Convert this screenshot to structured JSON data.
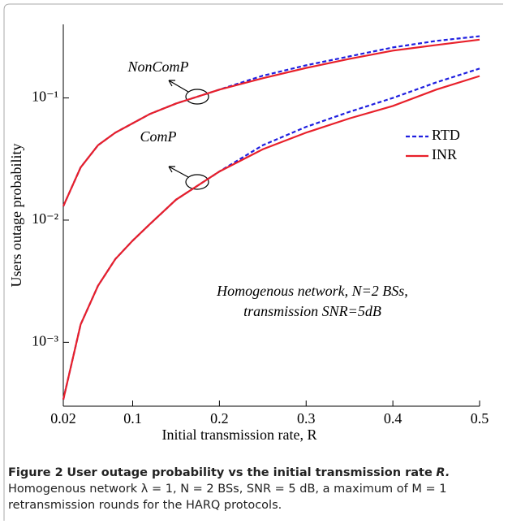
{
  "chart_data": {
    "type": "line",
    "x_label": "Initial transmission rate, R",
    "y_label": "Users outage probability",
    "x": [
      0.02,
      0.04,
      0.06,
      0.08,
      0.1,
      0.12,
      0.15,
      0.2,
      0.25,
      0.3,
      0.35,
      0.4,
      0.45,
      0.5
    ],
    "series": [
      {
        "name": "RTD",
        "color": "#1f1fe0",
        "dashed": true,
        "curves": [
          [
            0.013,
            0.027,
            0.041,
            0.052,
            0.062,
            0.074,
            0.09,
            0.117,
            0.152,
            0.185,
            0.219,
            0.259,
            0.293,
            0.32
          ],
          [
            0.00034,
            0.0014,
            0.0029,
            0.0048,
            0.0068,
            0.0093,
            0.0147,
            0.025,
            0.041,
            0.058,
            0.077,
            0.1,
            0.134,
            0.174
          ]
        ]
      },
      {
        "name": "INR",
        "color": "#e8202a",
        "dashed": false,
        "curves": [
          [
            0.013,
            0.027,
            0.041,
            0.052,
            0.062,
            0.074,
            0.09,
            0.117,
            0.145,
            0.176,
            0.209,
            0.244,
            0.271,
            0.3
          ],
          [
            0.00034,
            0.0014,
            0.0029,
            0.0048,
            0.0068,
            0.0093,
            0.0147,
            0.025,
            0.038,
            0.052,
            0.068,
            0.086,
            0.117,
            0.151
          ]
        ]
      }
    ],
    "curve_labels": [
      "NonComP",
      "ComP"
    ],
    "annotation": [
      "Homogenous network, N=2 BSs,",
      "transmission SNR=5dB"
    ],
    "xlim": [
      0.02,
      0.5
    ],
    "xticks": [
      0.02,
      0.1,
      0.2,
      0.3,
      0.4,
      0.5
    ],
    "ylim": [
      0.0003,
      0.4
    ],
    "ylog": true,
    "yticks": [
      {
        "value": 0.001,
        "label": "10⁻³"
      },
      {
        "value": 0.01,
        "label": "10⁻²"
      },
      {
        "value": 0.1,
        "label": "10⁻¹"
      }
    ],
    "legend": "right"
  },
  "caption": {
    "label": "Figure 2",
    "title": "User outage probability vs the initial transmission rate",
    "title_var": "R.",
    "text": "Homogenous network λ = 1, N = 2 BSs, SNR = 5 dB, a maximum of M = 1 retransmission rounds for the HARQ protocols."
  }
}
